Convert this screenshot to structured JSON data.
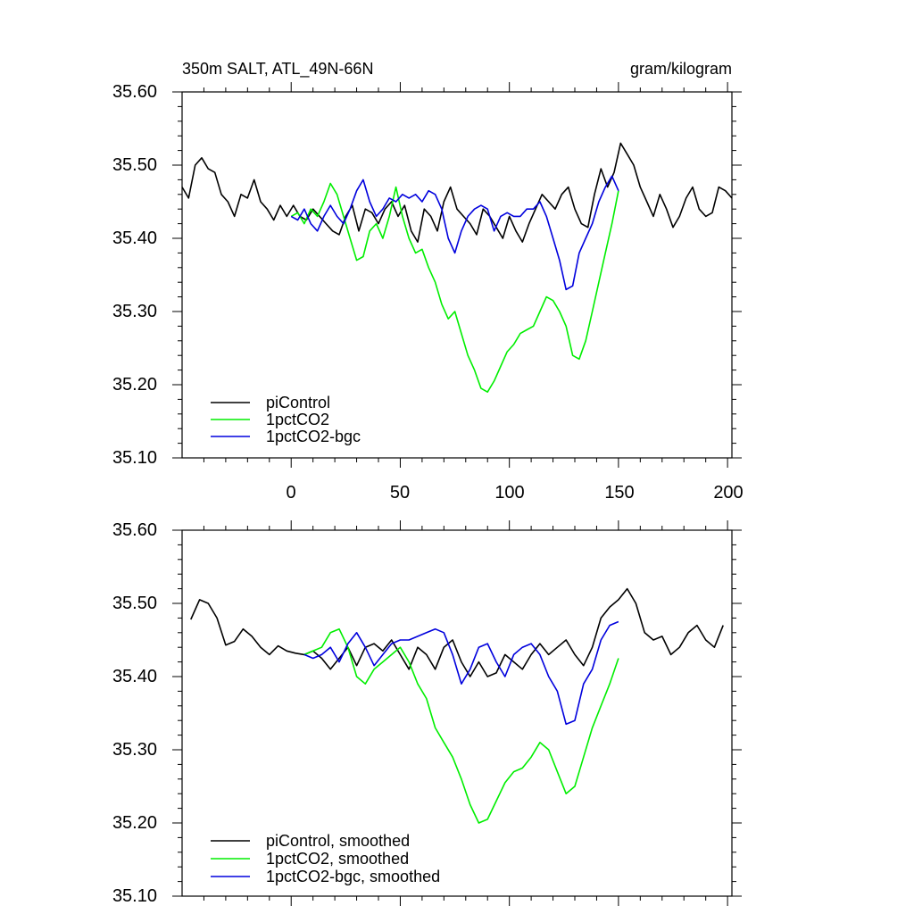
{
  "chart_data": [
    {
      "type": "line",
      "title_left": "350m SALT, ATL_49N-66N",
      "title_right": "gram/kilogram",
      "xlabel": "",
      "ylabel": "",
      "xlim": [
        -50,
        202
      ],
      "ylim": [
        35.1,
        35.6
      ],
      "x_ticks": [
        0,
        50,
        100,
        150,
        200
      ],
      "x_tick_labels": [
        "0",
        "50",
        "100",
        "150",
        "200"
      ],
      "y_ticks": [
        35.1,
        35.2,
        35.3,
        35.4,
        35.5,
        35.6
      ],
      "y_tick_labels": [
        "35.10",
        "35.20",
        "35.30",
        "35.40",
        "35.50",
        "35.60"
      ],
      "legend_position": "bottom-left",
      "series": [
        {
          "name": "piControl",
          "color": "#000000",
          "x": [
            -50,
            -47,
            -44,
            -41,
            -38,
            -35,
            -32,
            -29,
            -26,
            -23,
            -20,
            -17,
            -14,
            -11,
            -8,
            -5,
            -2,
            1,
            4,
            7,
            10,
            13,
            16,
            19,
            22,
            25,
            28,
            31,
            34,
            37,
            40,
            43,
            46,
            49,
            52,
            55,
            58,
            61,
            64,
            67,
            70,
            73,
            76,
            79,
            82,
            85,
            88,
            91,
            94,
            97,
            100,
            103,
            106,
            109,
            112,
            115,
            118,
            121,
            124,
            127,
            130,
            133,
            136,
            139,
            142,
            145,
            148,
            151,
            154,
            157,
            160,
            163,
            166,
            169,
            172,
            175,
            178,
            181,
            184,
            187,
            190,
            193,
            196,
            199,
            202
          ],
          "values": [
            35.47,
            35.455,
            35.5,
            35.51,
            35.495,
            35.49,
            35.46,
            35.45,
            35.43,
            35.46,
            35.455,
            35.48,
            35.45,
            35.44,
            35.425,
            35.445,
            35.43,
            35.445,
            35.43,
            35.425,
            35.44,
            35.43,
            35.42,
            35.41,
            35.405,
            35.43,
            35.445,
            35.41,
            35.44,
            35.435,
            35.42,
            35.44,
            35.45,
            35.43,
            35.445,
            35.41,
            35.395,
            35.44,
            35.43,
            35.41,
            35.45,
            35.47,
            35.44,
            35.43,
            35.42,
            35.405,
            35.44,
            35.43,
            35.415,
            35.4,
            35.43,
            35.41,
            35.395,
            35.42,
            35.44,
            35.46,
            35.45,
            35.44,
            35.46,
            35.47,
            35.44,
            35.42,
            35.415,
            35.46,
            35.495,
            35.47,
            35.49,
            35.53,
            35.515,
            35.5,
            35.47,
            35.45,
            35.43,
            35.46,
            35.44,
            35.415,
            35.43,
            35.455,
            35.47,
            35.44,
            35.43,
            35.435,
            35.47,
            35.465,
            35.455
          ]
        },
        {
          "name": "1pctCO2",
          "color": "#00ee00",
          "x": [
            0,
            3,
            6,
            9,
            12,
            15,
            18,
            21,
            24,
            27,
            30,
            33,
            36,
            39,
            42,
            45,
            48,
            51,
            54,
            57,
            60,
            63,
            66,
            69,
            72,
            75,
            78,
            81,
            84,
            87,
            90,
            93,
            96,
            99,
            102,
            105,
            108,
            111,
            114,
            117,
            120,
            123,
            126,
            129,
            132,
            135,
            138,
            141,
            144,
            147,
            150
          ],
          "values": [
            35.43,
            35.435,
            35.42,
            35.44,
            35.43,
            35.45,
            35.475,
            35.46,
            35.43,
            35.4,
            35.37,
            35.375,
            35.41,
            35.42,
            35.4,
            35.43,
            35.47,
            35.43,
            35.4,
            35.38,
            35.385,
            35.36,
            35.34,
            35.31,
            35.29,
            35.3,
            35.27,
            35.24,
            35.22,
            35.195,
            35.19,
            35.205,
            35.225,
            35.245,
            35.255,
            35.27,
            35.275,
            35.28,
            35.3,
            35.32,
            35.315,
            35.3,
            35.28,
            35.24,
            35.235,
            35.26,
            35.3,
            35.34,
            35.38,
            35.42,
            35.465
          ]
        },
        {
          "name": "1pctCO2-bgc",
          "color": "#0000dd",
          "x": [
            0,
            3,
            6,
            9,
            12,
            15,
            18,
            21,
            24,
            27,
            30,
            33,
            36,
            39,
            42,
            45,
            48,
            51,
            54,
            57,
            60,
            63,
            66,
            69,
            72,
            75,
            78,
            81,
            84,
            87,
            90,
            93,
            96,
            99,
            102,
            105,
            108,
            111,
            114,
            117,
            120,
            123,
            126,
            129,
            132,
            135,
            138,
            141,
            144,
            147,
            150
          ],
          "values": [
            35.43,
            35.425,
            35.44,
            35.42,
            35.41,
            35.43,
            35.445,
            35.43,
            35.42,
            35.44,
            35.465,
            35.48,
            35.45,
            35.43,
            35.44,
            35.455,
            35.45,
            35.46,
            35.455,
            35.46,
            35.45,
            35.465,
            35.46,
            35.44,
            35.4,
            35.38,
            35.41,
            35.43,
            35.44,
            35.445,
            35.44,
            35.41,
            35.43,
            35.435,
            35.43,
            35.43,
            35.44,
            35.44,
            35.45,
            35.43,
            35.4,
            35.37,
            35.33,
            35.335,
            35.38,
            35.4,
            35.42,
            35.45,
            35.47,
            35.485,
            35.465
          ]
        }
      ]
    },
    {
      "type": "line",
      "xlabel": "",
      "ylabel": "",
      "xlim": [
        -50,
        202
      ],
      "ylim": [
        35.1,
        35.6
      ],
      "y_ticks": [
        35.1,
        35.2,
        35.3,
        35.4,
        35.5,
        35.6
      ],
      "y_tick_labels": [
        "35.10",
        "35.20",
        "35.30",
        "35.40",
        "35.50",
        "35.60"
      ],
      "legend_position": "bottom-left",
      "series": [
        {
          "name": "piControl, smoothed",
          "color": "#000000",
          "x": [
            -46,
            -42,
            -38,
            -34,
            -30,
            -26,
            -22,
            -18,
            -14,
            -10,
            -6,
            -2,
            2,
            6,
            10,
            14,
            18,
            22,
            26,
            30,
            34,
            38,
            42,
            46,
            50,
            54,
            58,
            62,
            66,
            70,
            74,
            78,
            82,
            86,
            90,
            94,
            98,
            102,
            106,
            110,
            114,
            118,
            122,
            126,
            130,
            134,
            138,
            142,
            146,
            150,
            154,
            158,
            162,
            166,
            170,
            174,
            178,
            182,
            186,
            190,
            194,
            198
          ],
          "values": [
            35.478,
            35.505,
            35.5,
            35.48,
            35.443,
            35.448,
            35.465,
            35.455,
            35.44,
            35.43,
            35.442,
            35.435,
            35.432,
            35.43,
            35.435,
            35.425,
            35.41,
            35.425,
            35.44,
            35.415,
            35.44,
            35.445,
            35.435,
            35.45,
            35.43,
            35.41,
            35.44,
            35.43,
            35.41,
            35.44,
            35.45,
            35.42,
            35.4,
            35.42,
            35.4,
            35.405,
            35.43,
            35.42,
            35.41,
            35.43,
            35.445,
            35.43,
            35.44,
            35.45,
            35.43,
            35.415,
            35.44,
            35.48,
            35.495,
            35.505,
            35.52,
            35.5,
            35.46,
            35.45,
            35.455,
            35.43,
            35.44,
            35.46,
            35.47,
            35.45,
            35.44,
            35.47
          ]
        },
        {
          "name": "1pctCO2, smoothed",
          "color": "#00ee00",
          "x": [
            6,
            10,
            14,
            18,
            22,
            26,
            30,
            34,
            38,
            42,
            46,
            50,
            54,
            58,
            62,
            66,
            70,
            74,
            78,
            82,
            86,
            90,
            94,
            98,
            102,
            106,
            110,
            114,
            118,
            122,
            126,
            130,
            134,
            138,
            142,
            146,
            150
          ],
          "values": [
            35.43,
            35.435,
            35.44,
            35.46,
            35.465,
            35.44,
            35.4,
            35.39,
            35.41,
            35.42,
            35.43,
            35.44,
            35.42,
            35.39,
            35.37,
            35.33,
            35.31,
            35.29,
            35.26,
            35.225,
            35.2,
            35.205,
            35.23,
            35.255,
            35.27,
            35.275,
            35.29,
            35.31,
            35.3,
            35.27,
            35.24,
            35.25,
            35.29,
            35.33,
            35.36,
            35.39,
            35.425
          ]
        },
        {
          "name": "1pctCO2-bgc, smoothed",
          "color": "#0000dd",
          "x": [
            6,
            10,
            14,
            18,
            22,
            26,
            30,
            34,
            38,
            42,
            46,
            50,
            54,
            58,
            62,
            66,
            70,
            74,
            78,
            82,
            86,
            90,
            94,
            98,
            102,
            106,
            110,
            114,
            118,
            122,
            126,
            130,
            134,
            138,
            142,
            146,
            150
          ],
          "values": [
            35.43,
            35.425,
            35.43,
            35.44,
            35.42,
            35.445,
            35.46,
            35.44,
            35.415,
            35.43,
            35.445,
            35.45,
            35.45,
            35.455,
            35.46,
            35.465,
            35.46,
            35.43,
            35.39,
            35.41,
            35.44,
            35.445,
            35.42,
            35.4,
            35.43,
            35.44,
            35.445,
            35.43,
            35.4,
            35.38,
            35.335,
            35.34,
            35.39,
            35.41,
            35.45,
            35.47,
            35.475
          ]
        }
      ]
    }
  ]
}
